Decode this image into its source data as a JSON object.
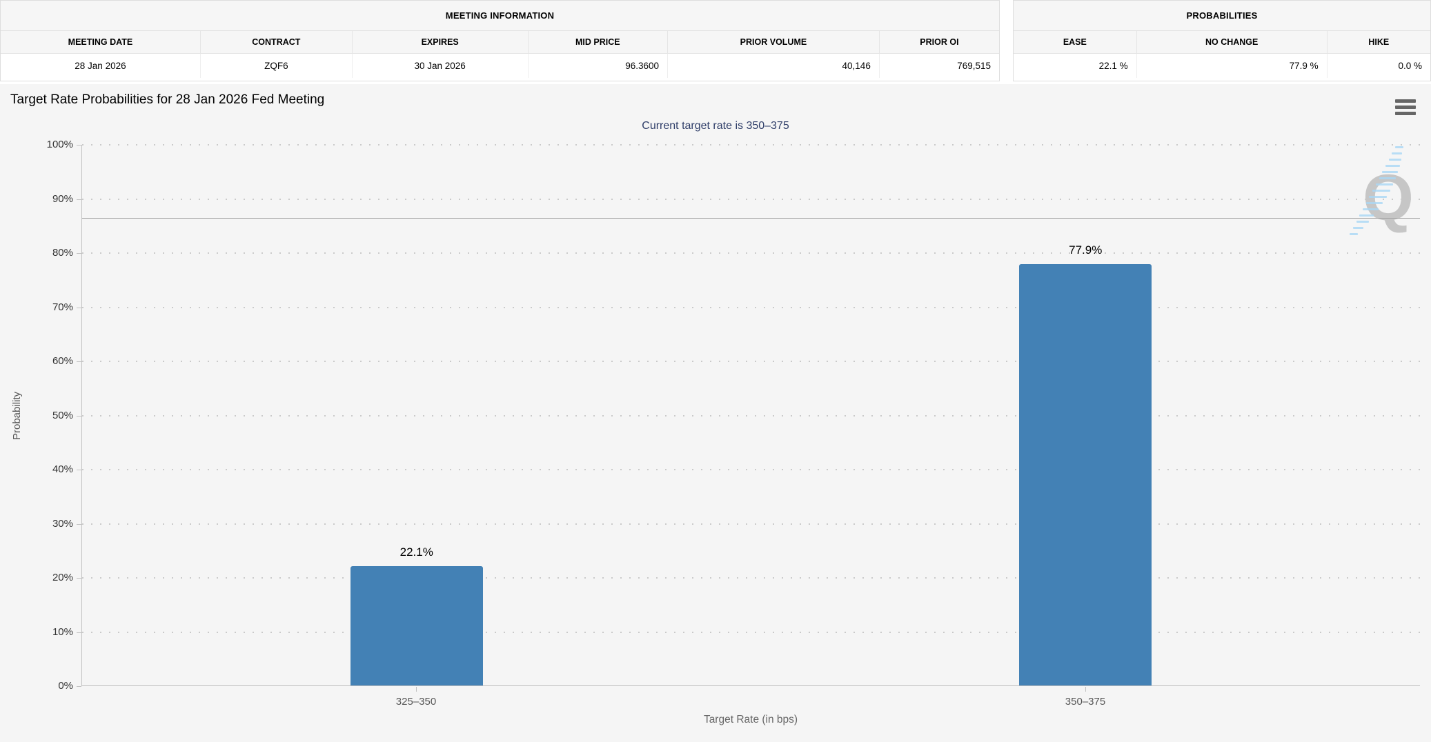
{
  "meeting_information": {
    "title": "MEETING INFORMATION",
    "columns": [
      "MEETING DATE",
      "CONTRACT",
      "EXPIRES",
      "MID PRICE",
      "PRIOR VOLUME",
      "PRIOR OI"
    ],
    "row": [
      "28 Jan 2026",
      "ZQF6",
      "30 Jan 2026",
      "96.3600",
      "40,146",
      "769,515"
    ]
  },
  "probabilities": {
    "title": "PROBABILITIES",
    "columns": [
      "EASE",
      "NO CHANGE",
      "HIKE"
    ],
    "row": [
      "22.1 %",
      "77.9 %",
      "0.0 %"
    ]
  },
  "chart_data": {
    "type": "bar",
    "title": "Target Rate Probabilities for 28 Jan 2026 Fed Meeting",
    "subtitle": "Current target rate is 350–375",
    "categories": [
      "325–350",
      "350–375"
    ],
    "values": [
      22.1,
      77.9
    ],
    "bar_labels": [
      "22.1%",
      "77.9%"
    ],
    "xlabel": "Target Rate (in bps)",
    "ylabel": "Probability",
    "ylim": [
      0,
      100
    ],
    "ytick_step": 10,
    "ytick_suffix": "%",
    "grid": "dotted-horizontal",
    "legend": "none",
    "reference_line_y": 86.5,
    "bar_color": "#4381b5",
    "subtitle_color": "#2e3d68"
  },
  "icons": {
    "context_menu": "hamburger-menu-icon",
    "watermark_letter": "Q"
  }
}
